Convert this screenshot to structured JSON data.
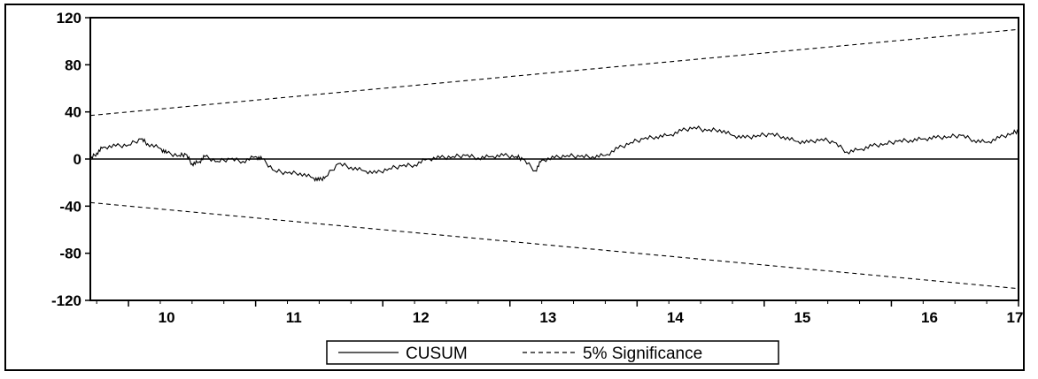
{
  "chart_data": {
    "type": "line",
    "title": "",
    "xlabel": "",
    "ylabel": "",
    "xlim": [
      9.7,
      17.0
    ],
    "ylim": [
      -120,
      120
    ],
    "grid": false,
    "legend_position": "bottom-center",
    "y_ticks": [
      "120",
      "80",
      "40",
      "0",
      "-40",
      "-80",
      "-120"
    ],
    "y_tick_values": [
      120,
      80,
      40,
      0,
      -40,
      -80,
      -120
    ],
    "x_ticks": [
      "10",
      "11",
      "12",
      "13",
      "14",
      "15",
      "16",
      "17"
    ],
    "x_tick_values": [
      10,
      11,
      12,
      13,
      14,
      15,
      16,
      17
    ],
    "zero_line": 0,
    "series": [
      {
        "name": "CUSUM",
        "style": "solid",
        "color": "#000000",
        "x": [
          9.7,
          9.75,
          9.8,
          9.9,
          10.0,
          10.1,
          10.15,
          10.25,
          10.3,
          10.4,
          10.45,
          10.5,
          10.55,
          10.6,
          10.7,
          10.8,
          10.9,
          11.0,
          11.05,
          11.15,
          11.25,
          11.35,
          11.45,
          11.5,
          11.55,
          11.65,
          11.75,
          11.85,
          11.95,
          12.05,
          12.15,
          12.25,
          12.35,
          12.45,
          12.55,
          12.65,
          12.75,
          12.85,
          12.95,
          13.05,
          13.1,
          13.2,
          13.25,
          13.35,
          13.45,
          13.55,
          13.65,
          13.75,
          13.85,
          13.95,
          14.05,
          14.15,
          14.25,
          14.35,
          14.45,
          14.55,
          14.65,
          14.75,
          14.85,
          14.95,
          15.05,
          15.15,
          15.25,
          15.35,
          15.45,
          15.55,
          15.65,
          15.75,
          15.85,
          15.95,
          16.05,
          16.15,
          16.25,
          16.35,
          16.45,
          16.55,
          16.65,
          16.75,
          16.85,
          16.95,
          17.0
        ],
        "y": [
          0,
          5,
          10,
          11,
          12,
          17,
          13,
          9,
          5,
          3,
          4,
          -4,
          -3,
          2,
          -2,
          0,
          -2,
          2,
          0,
          -10,
          -12,
          -12,
          -16,
          -18,
          -15,
          -4,
          -7,
          -10,
          -12,
          -8,
          -6,
          -5,
          0,
          1,
          2,
          3,
          1,
          2,
          3,
          2,
          0,
          -10,
          -1,
          1,
          3,
          2,
          2,
          3,
          9,
          14,
          17,
          19,
          20,
          24,
          27,
          24,
          25,
          20,
          18,
          20,
          21,
          19,
          15,
          14,
          17,
          14,
          6,
          8,
          11,
          13,
          15,
          16,
          17,
          18,
          19,
          20,
          16,
          14,
          18,
          22,
          24
        ]
      },
      {
        "name": "5% Significance",
        "style": "dashed",
        "color": "#000000",
        "x": [
          9.7,
          17.0
        ],
        "y": [
          37,
          110
        ]
      },
      {
        "name": "5% Significance",
        "style": "dashed",
        "color": "#000000",
        "x": [
          9.7,
          17.0
        ],
        "y": [
          -37,
          -110
        ]
      }
    ],
    "legend": {
      "entries": [
        {
          "label": "CUSUM",
          "style": "solid"
        },
        {
          "label": "5% Significance",
          "style": "dashed"
        }
      ]
    }
  }
}
